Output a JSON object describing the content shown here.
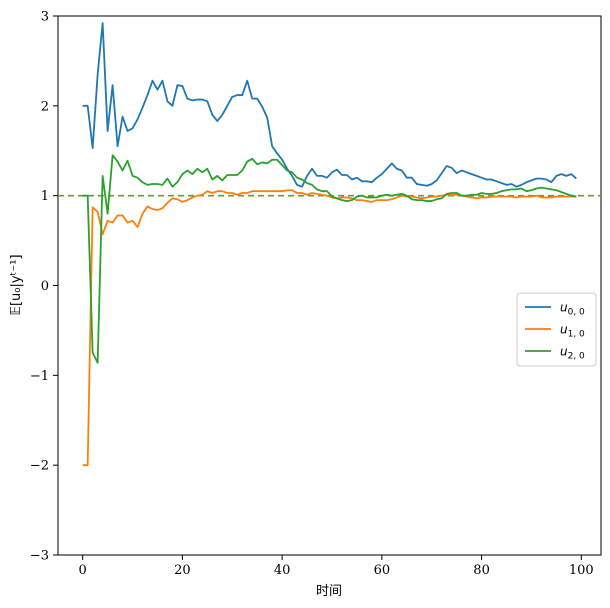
{
  "chart_data": {
    "type": "line",
    "title": "",
    "xlabel": "时间",
    "ylabel": "𝔼[u₀|yᵗ⁻¹]",
    "xlim": [
      -4.95,
      103.95
    ],
    "ylim": [
      -3,
      3
    ],
    "xticks": [
      0,
      20,
      40,
      60,
      80,
      100
    ],
    "yticks": [
      -3,
      -2,
      -1,
      0,
      1,
      2,
      3
    ],
    "xtick_labels": [
      "0",
      "20",
      "40",
      "60",
      "80",
      "100"
    ],
    "ytick_labels": [
      "−3",
      "−2",
      "−1",
      "0",
      "1",
      "2",
      "3"
    ],
    "grid": false,
    "legend_position": "center-right",
    "reference_line": {
      "y": 1,
      "style": "dashed",
      "color": "#6a9a3a"
    },
    "series": [
      {
        "name": "u0,0",
        "name_main": "u",
        "name_sub": "0, 0",
        "color": "#1f77b4",
        "x": [
          0,
          1,
          2,
          3,
          4,
          5,
          6,
          7,
          8,
          9,
          10,
          11,
          12,
          13,
          14,
          15,
          16,
          17,
          18,
          19,
          20,
          21,
          22,
          23,
          24,
          25,
          26,
          27,
          28,
          29,
          30,
          31,
          32,
          33,
          34,
          35,
          36,
          37,
          38,
          39,
          40,
          41,
          42,
          43,
          44,
          45,
          46,
          47,
          48,
          49,
          50,
          51,
          52,
          53,
          54,
          55,
          56,
          57,
          58,
          59,
          60,
          61,
          62,
          63,
          64,
          65,
          66,
          67,
          68,
          69,
          70,
          71,
          72,
          73,
          74,
          75,
          76,
          77,
          78,
          79,
          80,
          81,
          82,
          83,
          84,
          85,
          86,
          87,
          88,
          89,
          90,
          91,
          92,
          93,
          94,
          95,
          96,
          97,
          98,
          99
        ],
        "values": [
          2.0,
          2.0,
          1.53,
          2.35,
          2.92,
          1.72,
          2.23,
          1.55,
          1.88,
          1.72,
          1.75,
          1.85,
          1.98,
          2.12,
          2.28,
          2.18,
          2.28,
          2.05,
          2.0,
          2.23,
          2.22,
          2.08,
          2.06,
          2.07,
          2.07,
          2.05,
          1.9,
          1.83,
          1.9,
          2.0,
          2.1,
          2.12,
          2.12,
          2.28,
          2.08,
          2.08,
          1.99,
          1.87,
          1.55,
          1.47,
          1.4,
          1.3,
          1.22,
          1.12,
          1.1,
          1.22,
          1.3,
          1.22,
          1.22,
          1.2,
          1.26,
          1.29,
          1.23,
          1.23,
          1.18,
          1.2,
          1.16,
          1.16,
          1.15,
          1.2,
          1.24,
          1.3,
          1.36,
          1.3,
          1.28,
          1.2,
          1.2,
          1.13,
          1.12,
          1.11,
          1.13,
          1.17,
          1.25,
          1.33,
          1.31,
          1.25,
          1.28,
          1.26,
          1.24,
          1.22,
          1.2,
          1.18,
          1.18,
          1.16,
          1.14,
          1.12,
          1.13,
          1.1,
          1.12,
          1.15,
          1.17,
          1.19,
          1.19,
          1.18,
          1.15,
          1.22,
          1.24,
          1.22,
          1.24,
          1.19
        ]
      },
      {
        "name": "u1,0",
        "name_main": "u",
        "name_sub": "1, 0",
        "color": "#ff7f0e",
        "x": [
          0,
          1,
          2,
          3,
          4,
          5,
          6,
          7,
          8,
          9,
          10,
          11,
          12,
          13,
          14,
          15,
          16,
          17,
          18,
          19,
          20,
          21,
          22,
          23,
          24,
          25,
          26,
          27,
          28,
          29,
          30,
          31,
          32,
          33,
          34,
          35,
          36,
          37,
          38,
          39,
          40,
          41,
          42,
          43,
          44,
          45,
          46,
          47,
          48,
          49,
          50,
          51,
          52,
          53,
          54,
          55,
          56,
          57,
          58,
          59,
          60,
          61,
          62,
          63,
          64,
          65,
          66,
          67,
          68,
          69,
          70,
          71,
          72,
          73,
          74,
          75,
          76,
          77,
          78,
          79,
          80,
          81,
          82,
          83,
          84,
          85,
          86,
          87,
          88,
          89,
          90,
          91,
          92,
          93,
          94,
          95,
          96,
          97,
          98,
          99
        ],
        "values": [
          -2.0,
          -2.0,
          0.87,
          0.82,
          0.57,
          0.72,
          0.7,
          0.78,
          0.78,
          0.7,
          0.72,
          0.65,
          0.8,
          0.88,
          0.85,
          0.84,
          0.86,
          0.92,
          0.97,
          0.96,
          0.93,
          0.95,
          0.98,
          1.0,
          1.01,
          1.05,
          1.03,
          1.05,
          1.05,
          1.03,
          1.03,
          1.01,
          1.03,
          1.03,
          1.05,
          1.05,
          1.05,
          1.05,
          1.05,
          1.05,
          1.05,
          1.06,
          1.06,
          1.03,
          1.03,
          1.01,
          1.03,
          1.02,
          1.01,
          1.0,
          0.98,
          0.97,
          0.98,
          0.98,
          0.97,
          0.95,
          0.95,
          0.94,
          0.93,
          0.95,
          0.95,
          0.95,
          0.96,
          0.98,
          1.0,
          0.99,
          0.99,
          0.98,
          0.97,
          0.98,
          0.99,
          0.99,
          1.0,
          1.01,
          1.01,
          1.01,
          1.0,
          0.99,
          0.98,
          0.97,
          0.98,
          0.98,
          0.99,
          0.99,
          0.99,
          0.99,
          0.99,
          0.98,
          0.99,
          0.99,
          0.99,
          1.0,
          0.98,
          0.98,
          0.98,
          0.99,
          0.99,
          0.99,
          0.99,
          0.99
        ]
      },
      {
        "name": "u2,0",
        "name_main": "u",
        "name_sub": "2, 0",
        "color": "#2ca02c",
        "x": [
          0,
          1,
          2,
          3,
          4,
          5,
          6,
          7,
          8,
          9,
          10,
          11,
          12,
          13,
          14,
          15,
          16,
          17,
          18,
          19,
          20,
          21,
          22,
          23,
          24,
          25,
          26,
          27,
          28,
          29,
          30,
          31,
          32,
          33,
          34,
          35,
          36,
          37,
          38,
          39,
          40,
          41,
          42,
          43,
          44,
          45,
          46,
          47,
          48,
          49,
          50,
          51,
          52,
          53,
          54,
          55,
          56,
          57,
          58,
          59,
          60,
          61,
          62,
          63,
          64,
          65,
          66,
          67,
          68,
          69,
          70,
          71,
          72,
          73,
          74,
          75,
          76,
          77,
          78,
          79,
          80,
          81,
          82,
          83,
          84,
          85,
          86,
          87,
          88,
          89,
          90,
          91,
          92,
          93,
          94,
          95,
          96,
          97,
          98,
          99
        ],
        "values": [
          1.0,
          1.0,
          -0.75,
          -0.86,
          1.22,
          0.8,
          1.45,
          1.38,
          1.28,
          1.39,
          1.22,
          1.2,
          1.15,
          1.12,
          1.13,
          1.13,
          1.12,
          1.19,
          1.1,
          1.15,
          1.24,
          1.28,
          1.24,
          1.3,
          1.26,
          1.3,
          1.18,
          1.22,
          1.17,
          1.23,
          1.23,
          1.23,
          1.28,
          1.38,
          1.41,
          1.35,
          1.37,
          1.36,
          1.4,
          1.4,
          1.34,
          1.28,
          1.26,
          1.2,
          1.18,
          1.14,
          1.12,
          1.07,
          1.05,
          1.05,
          0.99,
          0.97,
          0.95,
          0.94,
          0.95,
          0.99,
          1.0,
          0.98,
          0.98,
          0.98,
          1.0,
          1.01,
          1.0,
          1.01,
          1.02,
          1.0,
          0.96,
          0.95,
          0.95,
          0.94,
          0.94,
          0.96,
          0.97,
          1.02,
          1.03,
          1.03,
          1.0,
          1.0,
          1.01,
          1.01,
          1.03,
          1.02,
          1.02,
          1.03,
          1.05,
          1.06,
          1.07,
          1.07,
          1.08,
          1.05,
          1.06,
          1.08,
          1.09,
          1.08,
          1.07,
          1.06,
          1.04,
          1.02,
          1.0,
          0.99
        ]
      }
    ]
  }
}
